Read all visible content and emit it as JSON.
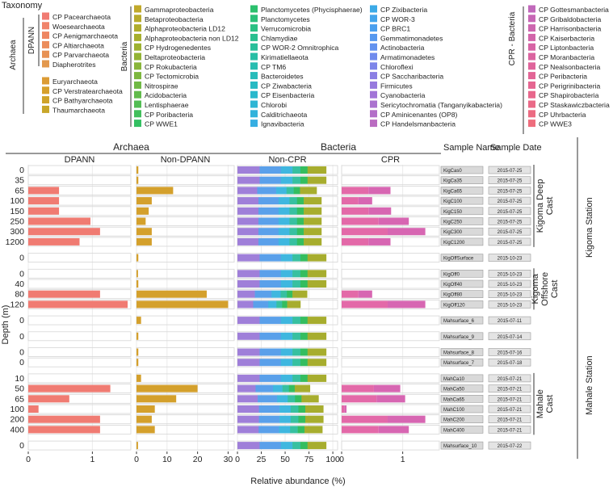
{
  "chart_data": {
    "type": "bar",
    "title": "Taxonomy",
    "xlabel": "Relative abundance (%)",
    "ylabel": "Depth (m)",
    "legend": {
      "archaea_label": "Archaea",
      "dpann_label": "DPANN",
      "bacteria_label": "Bacteria",
      "cpr_label": "CPR - Bacteria",
      "archaea_dpann": [
        {
          "name": "CP Pacearchaeota",
          "color": "#f07b72"
        },
        {
          "name": "Woesearchaeota",
          "color": "#f0836a"
        },
        {
          "name": "CP Aenigmarchaeota",
          "color": "#ee8662"
        },
        {
          "name": "CP Altiarchaeota",
          "color": "#eb8c5b"
        },
        {
          "name": "CP Parvarchaeota",
          "color": "#e79154"
        },
        {
          "name": "Diapherotrites",
          "color": "#e3984d"
        }
      ],
      "archaea_other": [
        {
          "name": "Euryarchaeota",
          "color": "#dc9c35"
        },
        {
          "name": "CP Verstratearchaeota",
          "color": "#d6a02c"
        },
        {
          "name": "CP Bathyarchaeota",
          "color": "#cfa32a"
        },
        {
          "name": "Thaumarchaeota",
          "color": "#c8a629"
        }
      ],
      "bacteria_col1": [
        {
          "name": "Gammaproteobacteria",
          "color": "#c1a92b"
        },
        {
          "name": "Betaproteobacteria",
          "color": "#b8ab2c"
        },
        {
          "name": "Alphaproteobacteria LD12",
          "color": "#b0ad2d"
        },
        {
          "name": "Alphaproteobacteria non LD12",
          "color": "#a7af2e"
        },
        {
          "name": "CP Hydrogenedentes",
          "color": "#9db131"
        },
        {
          "name": "Deltaproteobacteria",
          "color": "#93b335"
        },
        {
          "name": "CP Rokubacteria",
          "color": "#89b53a"
        },
        {
          "name": "CP Tectomicrobia",
          "color": "#7db73f"
        },
        {
          "name": "Nitrospirae",
          "color": "#70b945"
        },
        {
          "name": "Acidobacteria",
          "color": "#62bb4c"
        },
        {
          "name": "Lentisphaerae",
          "color": "#52bd53"
        },
        {
          "name": "CP Poribacteria",
          "color": "#42bf5b"
        },
        {
          "name": "CP WWE1",
          "color": "#34c063"
        }
      ],
      "bacteria_col2": [
        {
          "name": "Planctomycetes (Phycisphaerae)",
          "color": "#2cc06d"
        },
        {
          "name": "Planctomycetes",
          "color": "#2bc078"
        },
        {
          "name": "Verrucomicrobia",
          "color": "#2ac083"
        },
        {
          "name": "Chlamydiae",
          "color": "#29bf8f"
        },
        {
          "name": "CP WOR-2 Omnitrophica",
          "color": "#28bf9a"
        },
        {
          "name": "Kirimatiellaeota",
          "color": "#27bea5"
        },
        {
          "name": "CP TM6",
          "color": "#27bdb0"
        },
        {
          "name": "Bacteroidetes",
          "color": "#27bcba"
        },
        {
          "name": "CP Ziwabacteria",
          "color": "#28bac3"
        },
        {
          "name": "CP Eisenbacteria",
          "color": "#2ab8cc"
        },
        {
          "name": "Chlorobi",
          "color": "#2db5d4"
        },
        {
          "name": "Calditrichaeota",
          "color": "#31b2db"
        },
        {
          "name": "Ignavibacteria",
          "color": "#36aee2"
        }
      ],
      "bacteria_col3": [
        {
          "name": "CP Zixibacteria",
          "color": "#3caae7"
        },
        {
          "name": "CP WOR-3",
          "color": "#43a5eb"
        },
        {
          "name": "CP BRC1",
          "color": "#4a9fee"
        },
        {
          "name": "Gemmatimonadetes",
          "color": "#5598ef"
        },
        {
          "name": "Actinobacteria",
          "color": "#6292ef"
        },
        {
          "name": "Armatimonadetes",
          "color": "#708bed"
        },
        {
          "name": "Chloroflexi",
          "color": "#7d85e9"
        },
        {
          "name": "CP Saccharibacteria",
          "color": "#8b7fe4"
        },
        {
          "name": "Firmicutes",
          "color": "#977ade"
        },
        {
          "name": "Cyanobacteria",
          "color": "#a275d7"
        },
        {
          "name": "Sericytochromatia (Tanganyikabacteria)",
          "color": "#ab72cf"
        },
        {
          "name": "CP Aminicenantes (OP8)",
          "color": "#b36fc8"
        },
        {
          "name": "CP Handelsmanbacteria",
          "color": "#ba6cc1"
        }
      ],
      "cpr": [
        {
          "name": "CP Gottesmanbacteria",
          "color": "#c169bb"
        },
        {
          "name": "CP Gribaldobacteria",
          "color": "#c767b5"
        },
        {
          "name": "CP Harrisonbacteria",
          "color": "#cd66af"
        },
        {
          "name": "CP Kaiserbacteria",
          "color": "#d265aa"
        },
        {
          "name": "CP Liptonbacteria",
          "color": "#d764a5"
        },
        {
          "name": "CP Moranbacteria",
          "color": "#db64a0"
        },
        {
          "name": "CP Nealsonbacteria",
          "color": "#df649b"
        },
        {
          "name": "CP Peribacteria",
          "color": "#e26596"
        },
        {
          "name": "CP Perigrinibacteria",
          "color": "#e56691"
        },
        {
          "name": "CP Shapirobacteria",
          "color": "#e8678c"
        },
        {
          "name": "CP Staskawiczbacteria",
          "color": "#ea6987"
        },
        {
          "name": "CP Uhrbacteria",
          "color": "#ec6b82"
        },
        {
          "name": "CP WWE3",
          "color": "#ee6d7d"
        }
      ]
    },
    "panels": [
      {
        "group": "Archaea",
        "title": "DPANN",
        "xlim": [
          0,
          1.6
        ],
        "ticks": [
          0,
          1
        ],
        "tick_labels": [
          "0",
          "1"
        ],
        "color": "#f07b72"
      },
      {
        "group": "Archaea",
        "title": "Non-DPANN",
        "xlim": [
          0,
          32
        ],
        "ticks": [
          0,
          10,
          20,
          30
        ],
        "tick_labels": [
          "0",
          "10",
          "20",
          "30"
        ],
        "color": "#d4a02c"
      },
      {
        "group": "Bacteria",
        "title": "Non-CPR",
        "xlim": [
          0,
          105
        ],
        "ticks": [
          0,
          25,
          50,
          75,
          100
        ],
        "tick_labels": [
          "0",
          "25",
          "50",
          "75",
          "100"
        ]
      },
      {
        "group": "Bacteria",
        "title": "CPR",
        "xlim": [
          0,
          1.6
        ],
        "ticks": [
          0,
          1
        ],
        "tick_labels": [
          "0",
          "1"
        ]
      }
    ],
    "groups": [
      "Archaea",
      "Bacteria"
    ],
    "col_headers": {
      "sample_name": "Sample Name",
      "sample_date": "Sample Date"
    },
    "noncpr_segments": {
      "colors": [
        "#9f7fd9",
        "#5aa0ea",
        "#3fb7df",
        "#37c0a0",
        "#34bd5f",
        "#a7ad2e"
      ],
      "fractions": [
        0.25,
        0.24,
        0.13,
        0.09,
        0.08,
        0.21
      ]
    },
    "cpr_colors": [
      "#e369a8",
      "#d766b2"
    ],
    "rows": [
      {
        "depth": "0",
        "name": "KigCas0",
        "date": "2015-07-25",
        "dpann": 0,
        "nondpann": 0.6,
        "noncpr": 93,
        "cpr": 0
      },
      {
        "depth": "35",
        "name": "KigCa35",
        "date": "2015-07-25",
        "dpann": 0,
        "nondpann": 0.6,
        "noncpr": 93,
        "cpr": 0
      },
      {
        "depth": "65",
        "name": "KigCa65",
        "date": "2015-07-25",
        "dpann": 0.48,
        "nondpann": 12,
        "noncpr": 83,
        "cpr": 0.8
      },
      {
        "depth": "100",
        "name": "KigC100",
        "date": "2015-07-25",
        "dpann": 0.48,
        "nondpann": 5,
        "noncpr": 88,
        "cpr": 0.5
      },
      {
        "depth": "150",
        "name": "KigC150",
        "date": "2015-07-25",
        "dpann": 0.48,
        "nondpann": 4,
        "noncpr": 88,
        "cpr": 0.81
      },
      {
        "depth": "250",
        "name": "KigC250",
        "date": "2015-07-25",
        "dpann": 0.97,
        "nondpann": 3,
        "noncpr": 88,
        "cpr": 1.1
      },
      {
        "depth": "300",
        "name": "KigC300",
        "date": "2015-07-25",
        "dpann": 1.12,
        "nondpann": 5,
        "noncpr": 88,
        "cpr": 1.37
      },
      {
        "depth": "1200",
        "name": "KigC1200",
        "date": "2015-07-25",
        "dpann": 0.8,
        "nondpann": 5,
        "noncpr": 88,
        "cpr": 0.8
      },
      {
        "depth": "0",
        "name": "KigOffSurface",
        "date": "2015-10-23",
        "dpann": 0,
        "nondpann": 0.6,
        "noncpr": 93,
        "cpr": 0
      },
      {
        "depth": "0",
        "name": "KigOff0",
        "date": "2015-10-23",
        "dpann": 0,
        "nondpann": 0.5,
        "noncpr": 93,
        "cpr": 0
      },
      {
        "depth": "40",
        "name": "KigOff40",
        "date": "2015-10-23",
        "dpann": 0,
        "nondpann": 0.6,
        "noncpr": 93,
        "cpr": 0
      },
      {
        "depth": "80",
        "name": "KigOff80",
        "date": "2015-10-23",
        "dpann": 1.12,
        "nondpann": 23,
        "noncpr": 73,
        "cpr": 0.5
      },
      {
        "depth": "120",
        "name": "KigOff120",
        "date": "2015-10-23",
        "dpann": 1.55,
        "nondpann": 30,
        "noncpr": 66,
        "cpr": 1.37
      },
      {
        "depth": "0",
        "name": "Mahsurface_6",
        "date": "2015-07-11",
        "dpann": 0,
        "nondpann": 1.5,
        "noncpr": 93,
        "cpr": 0
      },
      {
        "depth": "0",
        "name": "Mahsurface_9",
        "date": "2015-07-14",
        "dpann": 0,
        "nondpann": 0.6,
        "noncpr": 93,
        "cpr": 0
      },
      {
        "depth": "0",
        "name": "Mahsurface_8",
        "date": "2015-07-16",
        "dpann": 0,
        "nondpann": 0.6,
        "noncpr": 93,
        "cpr": 0
      },
      {
        "depth": "0",
        "name": "Mahsurface_7",
        "date": "2015-07-18",
        "dpann": 0,
        "nondpann": 0.6,
        "noncpr": 93,
        "cpr": 0
      },
      {
        "depth": "10",
        "name": "MahCa10",
        "date": "2015-07-21",
        "dpann": 0,
        "nondpann": 1.5,
        "noncpr": 93,
        "cpr": 0
      },
      {
        "depth": "50",
        "name": "MahCa50",
        "date": "2015-07-21",
        "dpann": 1.28,
        "nondpann": 20,
        "noncpr": 76,
        "cpr": 0.96
      },
      {
        "depth": "65",
        "name": "MahCa65",
        "date": "2015-07-21",
        "dpann": 0.64,
        "nondpann": 13,
        "noncpr": 85,
        "cpr": 1.04
      },
      {
        "depth": "100",
        "name": "MahC100",
        "date": "2015-07-21",
        "dpann": 0.16,
        "nondpann": 6,
        "noncpr": 90,
        "cpr": 0.08
      },
      {
        "depth": "200",
        "name": "MahC200",
        "date": "2015-07-21",
        "dpann": 1.12,
        "nondpann": 5,
        "noncpr": 90,
        "cpr": 1.37
      },
      {
        "depth": "400",
        "name": "MahC400",
        "date": "2015-07-21",
        "dpann": 1.12,
        "nondpann": 6,
        "noncpr": 89,
        "cpr": 1.1
      },
      {
        "depth": "0",
        "name": "Mahsurface_10",
        "date": "2015-07-22",
        "dpann": 0,
        "nondpann": 0.5,
        "noncpr": 93,
        "cpr": 0
      }
    ],
    "blocks": [
      {
        "rows": [
          0,
          7
        ],
        "label": [
          "Kigoma Deep",
          "Cast"
        ]
      },
      {
        "rows": [
          8,
          8
        ]
      },
      {
        "rows": [
          9,
          12
        ],
        "label": [
          "Kigoma",
          "Offshore",
          "Cast"
        ]
      },
      {
        "rows": [
          13,
          13
        ]
      },
      {
        "rows": [
          14,
          14
        ]
      },
      {
        "rows": [
          15,
          16
        ]
      },
      {
        "rows": [
          17,
          22
        ],
        "label": [
          "Mahale",
          "Cast"
        ]
      },
      {
        "rows": [
          23,
          23
        ]
      }
    ],
    "stations": [
      {
        "label": "Kigoma Station",
        "rows": [
          0,
          12
        ]
      },
      {
        "label": "Mahale Station",
        "rows": [
          13,
          23
        ]
      }
    ]
  }
}
